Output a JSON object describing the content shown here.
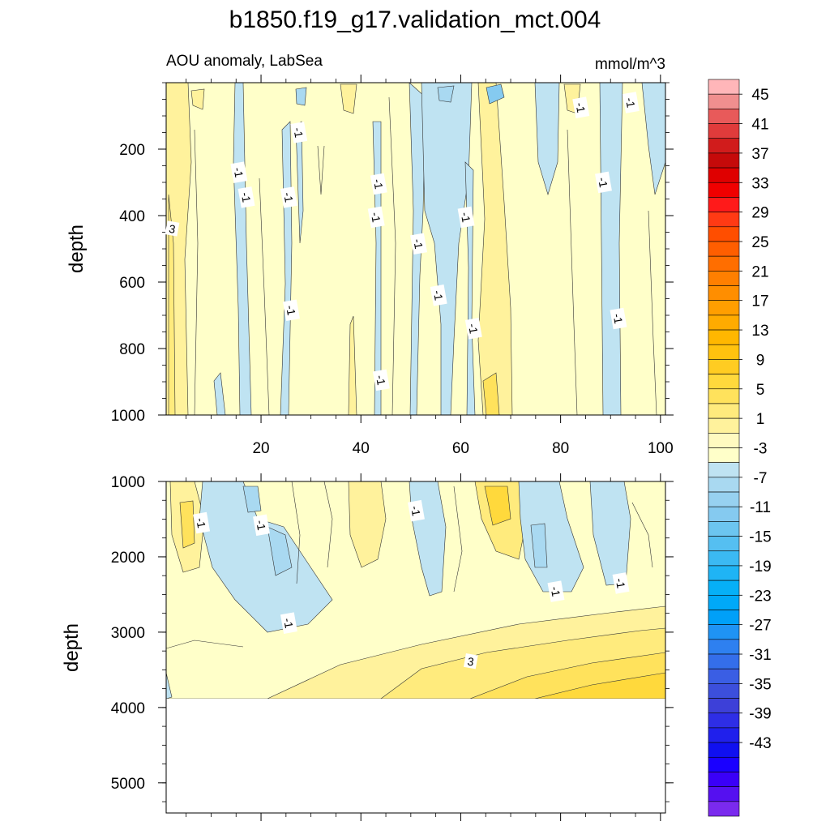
{
  "title": "b1850.f19_g17.validation_mct.004",
  "chart_data": [
    {
      "type": "heatmap",
      "panel": "upper",
      "subtitle_left": "AOU anomaly, LabSea",
      "subtitle_right": "mmol/m^3",
      "xlabel": "",
      "ylabel": "depth",
      "xlim": [
        1,
        101
      ],
      "ylim": [
        1000,
        0
      ],
      "xticks": [
        20,
        40,
        60,
        80,
        100
      ],
      "yticks": [
        200,
        400,
        600,
        800,
        1000
      ],
      "xtick_labels": [
        "20",
        "40",
        "60",
        "80",
        "100"
      ],
      "ytick_labels": [
        "200",
        "400",
        "600",
        "800",
        "1000"
      ],
      "contour_labels": [
        {
          "text": "3",
          "x": 2.2,
          "y": 440
        },
        {
          "text": "-1",
          "x": 15.5,
          "y": 270
        },
        {
          "text": "-1",
          "x": 17,
          "y": 345
        },
        {
          "text": "-1",
          "x": 27.5,
          "y": 150
        },
        {
          "text": "-1",
          "x": 25.5,
          "y": 345
        },
        {
          "text": "-1",
          "x": 26,
          "y": 685
        },
        {
          "text": "-1",
          "x": 43.5,
          "y": 305
        },
        {
          "text": "-1",
          "x": 43,
          "y": 405
        },
        {
          "text": "-1",
          "x": 44,
          "y": 895
        },
        {
          "text": "-1",
          "x": 51.5,
          "y": 485
        },
        {
          "text": "-1",
          "x": 55.5,
          "y": 640
        },
        {
          "text": "-1",
          "x": 61,
          "y": 405
        },
        {
          "text": "-1",
          "x": 62.5,
          "y": 740
        },
        {
          "text": "-1",
          "x": 84,
          "y": 75
        },
        {
          "text": "-1",
          "x": 88.5,
          "y": 300
        },
        {
          "text": "-1",
          "x": 91.5,
          "y": 710
        },
        {
          "text": "-1",
          "x": 94,
          "y": 60
        }
      ]
    },
    {
      "type": "heatmap",
      "panel": "lower",
      "xlabel": "",
      "ylabel": "depth",
      "xlim": [
        1,
        101
      ],
      "ylim": [
        5400,
        1000
      ],
      "yticks": [
        1000,
        2000,
        3000,
        4000,
        5000
      ],
      "ytick_labels": [
        "1000",
        "2000",
        "3000",
        "4000",
        "5000"
      ],
      "contour_labels": [
        {
          "text": "-1",
          "x": 8,
          "y": 1550
        },
        {
          "text": "-1",
          "x": 20,
          "y": 1580
        },
        {
          "text": "-1",
          "x": 25.5,
          "y": 2880
        },
        {
          "text": "-1",
          "x": 51,
          "y": 1390
        },
        {
          "text": "-1",
          "x": 79,
          "y": 2460
        },
        {
          "text": "-1",
          "x": 92,
          "y": 2350
        },
        {
          "text": "3",
          "x": 62,
          "y": 3390
        }
      ]
    }
  ],
  "colorbar": {
    "tick_labels": [
      "45",
      "41",
      "37",
      "33",
      "29",
      "25",
      "21",
      "17",
      "13",
      "9",
      "5",
      "1",
      "-3",
      "-7",
      "-11",
      "-15",
      "-19",
      "-23",
      "-27",
      "-31",
      "-35",
      "-39",
      "-43"
    ],
    "colors": [
      "#FFB6B9",
      "#F08F8F",
      "#E85A5A",
      "#E03B3B",
      "#D11C1C",
      "#C50A0A",
      "#DF0000",
      "#F00000",
      "#FF1A1A",
      "#FF3A14",
      "#FF4E00",
      "#FF5E00",
      "#FF6E00",
      "#FF7F00",
      "#FF8E00",
      "#FF9E00",
      "#FFAB00",
      "#FFB700",
      "#FFC20E",
      "#FFCC22",
      "#FFD93C",
      "#FFE25C",
      "#FFEB7D",
      "#FFF29C",
      "#FFFAC0",
      "#FFFFC9",
      "#BFE3F2",
      "#A9D9F1",
      "#97D1F0",
      "#85CAF0",
      "#6CC5F0",
      "#55BFF1",
      "#3BB9F3",
      "#1FB4F5",
      "#06B0F7",
      "#00A9F8",
      "#00A0F8",
      "#1F93F4",
      "#2E80F0",
      "#346EEA",
      "#3A5EE4",
      "#3C4FDC",
      "#3D40D8",
      "#2E2EE6",
      "#2020EC",
      "#1010F0",
      "#1A00FF",
      "#3A00F8",
      "#5510F0",
      "#7A2AEE"
    ]
  }
}
